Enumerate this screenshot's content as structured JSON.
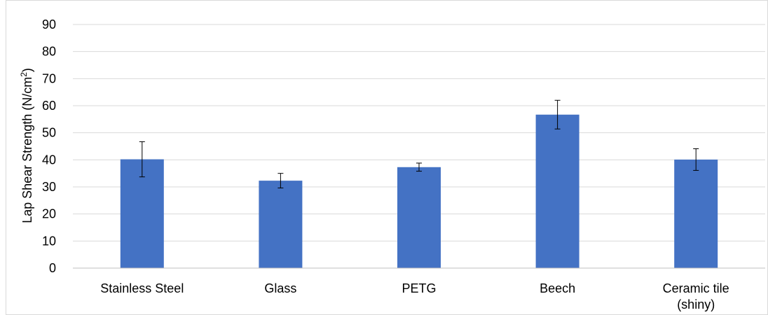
{
  "chart_data": {
    "type": "bar",
    "categories": [
      [
        "Stainless Steel"
      ],
      [
        "Glass"
      ],
      [
        "PETG"
      ],
      [
        "Beech"
      ],
      [
        "Ceramic tile",
        "(shiny)"
      ]
    ],
    "values": [
      40.2,
      32.3,
      37.3,
      56.7,
      40.1
    ],
    "error": [
      6.5,
      2.7,
      1.5,
      5.3,
      4.0
    ],
    "ylabel": "Lap Shear Strength (N/cm²)",
    "ylabel_main": "Lap Shear Strength (N/cm",
    "ylabel_sup": "2",
    "ylabel_end": ")",
    "ylim": [
      0,
      90
    ],
    "yticks": [
      0,
      10,
      20,
      30,
      40,
      50,
      60,
      70,
      80,
      90
    ],
    "grid": true,
    "colors": {
      "bar": "#4472C4",
      "grid": "#D9D9D9",
      "axis": "#BFBFBF",
      "error": "#000000",
      "border": "#D9D9D9"
    }
  }
}
